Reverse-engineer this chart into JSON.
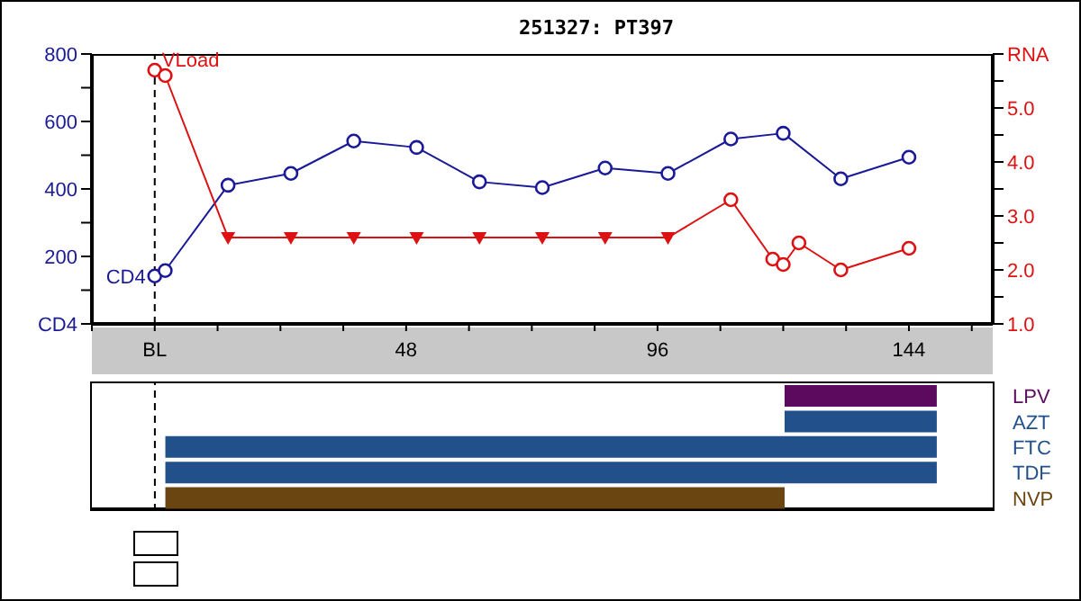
{
  "chart_data": [
    {
      "type": "line",
      "title": "251327: PT397",
      "xlim": [
        -12,
        160
      ],
      "xticks": [
        {
          "value": -12,
          "label": null
        },
        {
          "value": 0,
          "label": "BL"
        },
        {
          "value": 12,
          "label": null
        },
        {
          "value": 24,
          "label": null
        },
        {
          "value": 36,
          "label": null
        },
        48,
        {
          "value": 60,
          "label": null
        },
        {
          "value": 72,
          "label": null
        },
        {
          "value": 84,
          "label": null
        },
        96,
        {
          "value": 108,
          "label": null
        },
        {
          "value": 120,
          "label": null
        },
        {
          "value": 132,
          "label": null
        },
        144,
        {
          "value": 156,
          "label": null
        }
      ],
      "ylim": [
        0,
        800
      ],
      "yticks": [
        {
          "value": 0,
          "label": "CD4"
        },
        {
          "value": 100,
          "label": null
        },
        200,
        {
          "value": 300,
          "label": null
        },
        400,
        {
          "value": 500,
          "label": null
        },
        600,
        {
          "value": 700,
          "label": null
        },
        800
      ],
      "y2lim": [
        1,
        6
      ],
      "y2ticks": [
        {
          "value": 1,
          "label": "1.0"
        },
        {
          "value": 1.5,
          "label": null
        },
        {
          "value": 2,
          "label": "2.0"
        },
        {
          "value": 2.5,
          "label": null
        },
        {
          "value": 3,
          "label": "3.0"
        },
        {
          "value": 3.5,
          "label": null
        },
        {
          "value": 4,
          "label": "4.0"
        },
        {
          "value": 4.5,
          "label": null
        },
        {
          "value": 5,
          "label": "5.0"
        },
        {
          "value": 5.5,
          "label": null
        },
        {
          "value": 6,
          "label": "RNA"
        }
      ],
      "grid": false,
      "ref_lines": [
        {
          "axis": "x",
          "value": 0,
          "line_style": "dashed",
          "color": "#000000"
        }
      ],
      "series": [
        {
          "name": "CD4",
          "type": "line",
          "color": "#1a1a99",
          "marker": "circle",
          "x": [
            0,
            2,
            14,
            26,
            38,
            50,
            62,
            74,
            86,
            98,
            110,
            120,
            131,
            144
          ],
          "values": [
            142,
            158,
            411,
            446,
            542,
            523,
            421,
            404,
            462,
            446,
            548,
            565,
            430,
            494
          ]
        },
        {
          "name": "VLoad",
          "type": "line",
          "axis": "y2",
          "color": "#dd1111",
          "marker": "none",
          "x": [
            0,
            2,
            14,
            26,
            38,
            50,
            62,
            74,
            86,
            98,
            110,
            118,
            120,
            123,
            131,
            144
          ],
          "values": [
            5.7,
            5.6,
            2.6,
            2.6,
            2.6,
            2.6,
            2.6,
            2.6,
            2.6,
            2.6,
            3.3,
            2.2,
            2.1,
            2.5,
            2.0,
            2.4
          ]
        },
        {
          "type": "scatter",
          "axis": "y2",
          "color": "#dd1111",
          "marker": "circle",
          "x": [
            0,
            2,
            110,
            118,
            120,
            123,
            131,
            144
          ],
          "values": [
            5.7,
            5.6,
            3.3,
            2.2,
            2.1,
            2.5,
            2.0,
            2.4
          ]
        },
        {
          "type": "scatter",
          "axis": "y2",
          "color": "#dd1111",
          "marker": "triangle",
          "x": [
            14,
            26,
            38,
            50,
            62,
            74,
            86,
            98
          ],
          "values": [
            2.6,
            2.6,
            2.6,
            2.6,
            2.6,
            2.6,
            2.6,
            2.6
          ]
        }
      ]
    },
    {
      "type": "bar",
      "orientation": "horizontal",
      "xlim": [
        -12,
        160
      ],
      "tick_labels": "y",
      "categories": [
        "LPV",
        "AZT",
        "FTC",
        "TDF",
        "NVP"
      ],
      "base": [
        120,
        120,
        2,
        2,
        2
      ],
      "values": [
        29,
        29,
        147,
        147,
        118
      ],
      "colors": [
        "#5c0a5e",
        "#21508a",
        "#21508a",
        "#21508a",
        "#6b4511"
      ],
      "ref_lines": [
        {
          "axis": "x",
          "value": 0,
          "line_style": "dashed",
          "color": "#000000"
        }
      ]
    }
  ]
}
